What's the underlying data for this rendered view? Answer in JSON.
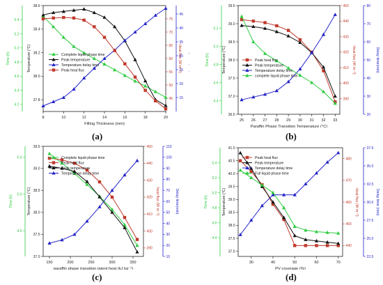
{
  "chart_data": [
    {
      "type": "line",
      "panel_label": "(a)",
      "xlabel": "Filling Thickness (mm)",
      "xlim": [
        8,
        20
      ],
      "xticks": [
        "8",
        "10",
        "12",
        "14",
        "16",
        "18",
        "20"
      ],
      "axes": [
        {
          "id": "time",
          "label": "Time (h)",
          "color": "#2ecc40",
          "ylim": [
            4.1,
            5.6
          ],
          "ticks": [
            "4.2",
            "4.4",
            "4.6",
            "4.8",
            "5.0",
            "5.2",
            "5.4"
          ]
        },
        {
          "id": "temp",
          "label": "Temperature (°C)",
          "color": "#222222",
          "ylim": [
            37.7,
            38.6
          ],
          "ticks": [
            "37.8",
            "38.0",
            "38.2",
            "38.4",
            "38.6"
          ]
        },
        {
          "id": "flux",
          "label": "Heat flux (W m⁻²)",
          "color": "#c0392b",
          "ylim": [
            40,
            80
          ],
          "ticks": [
            "45",
            "50",
            "55",
            "60",
            "65",
            "70",
            "75"
          ]
        },
        {
          "id": "delay",
          "label": "Delay time (min)",
          "color": "#2323c8",
          "ylim": [
            10,
            48
          ],
          "ticks": [
            "15",
            "20",
            "25",
            "30",
            "35",
            "40",
            "45"
          ]
        }
      ],
      "legend": [
        "Complete liquid phase time",
        "Peak temperature",
        "Temperature delay time",
        "Peak heat flux"
      ],
      "series": [
        {
          "name": "Complete liquid phase time",
          "axis": "time",
          "color": "#2ecc40",
          "marker": "triangle",
          "x": [
            8,
            9,
            10,
            11,
            12,
            13,
            14,
            15,
            16,
            17,
            18,
            19,
            20
          ],
          "values": [
            5.45,
            5.3,
            5.15,
            5.02,
            4.93,
            4.85,
            4.77,
            4.69,
            4.61,
            4.53,
            4.46,
            4.38,
            4.3
          ]
        },
        {
          "name": "Peak temperature",
          "axis": "temp",
          "color": "#111111",
          "marker": "triangle",
          "x": [
            8,
            9,
            10,
            11,
            12,
            13,
            14,
            15,
            16,
            17,
            18,
            19,
            20
          ],
          "values": [
            38.52,
            38.54,
            38.55,
            38.56,
            38.57,
            38.54,
            38.5,
            38.42,
            38.3,
            38.14,
            37.96,
            37.8,
            37.75
          ]
        },
        {
          "name": "Temperature delay time",
          "axis": "delay",
          "color": "#2323c8",
          "marker": "triangle",
          "x": [
            8,
            9,
            10,
            11,
            12,
            13,
            14,
            15,
            16,
            17,
            18,
            19,
            20
          ],
          "values": [
            12,
            13.5,
            15,
            18,
            22,
            25.5,
            29,
            32,
            35.5,
            38.5,
            41.5,
            44.5,
            47
          ]
        },
        {
          "name": "Peak heat flux",
          "axis": "flux",
          "color": "#c0392b",
          "marker": "square",
          "x": [
            8,
            9,
            10,
            11,
            12,
            13,
            14,
            15,
            16,
            17,
            18,
            19,
            20
          ],
          "values": [
            75,
            75.3,
            75.5,
            75.3,
            74.5,
            72,
            68,
            63,
            58,
            53,
            48,
            44,
            41
          ]
        }
      ]
    },
    {
      "type": "line",
      "panel_label": "(b)",
      "xlabel": "Paraffin Phase Transition Temperature (°C)",
      "xlim": [
        24.7,
        33.4
      ],
      "xticks": [
        "25",
        "26",
        "27",
        "28",
        "29",
        "30",
        "31",
        "32",
        "33"
      ],
      "axes": [
        {
          "id": "time",
          "label": "Time (h)",
          "color": "#2ecc40",
          "ylim": [
            4.25,
            5.45
          ],
          "ticks": [
            "4.4",
            "4.6",
            "4.8",
            "5.0",
            "5.2"
          ]
        },
        {
          "id": "temp",
          "label": "Temperature (°C)",
          "color": "#222222",
          "ylim": [
            36.5,
            39.5
          ],
          "ticks": [
            "36.5",
            "37.0",
            "37.5",
            "38.0",
            "38.5",
            "39.0",
            "39.5"
          ]
        },
        {
          "id": "flux",
          "label": "Heat flux (W m⁻²)",
          "color": "#c0392b",
          "ylim": [
            380,
            450
          ],
          "ticks": [
            "390",
            "400",
            "410",
            "420",
            "430",
            "440",
            "450"
          ]
        },
        {
          "id": "delay",
          "label": "Delay time(min)",
          "color": "#2323c8",
          "ylim": [
            20,
            80
          ],
          "ticks": [
            "20",
            "30",
            "40",
            "50",
            "60",
            "70",
            "80"
          ]
        }
      ],
      "legend": [
        "Peak heat flux",
        "Peak temperature",
        "Temperature delay time",
        "complete liquid phase time"
      ],
      "series": [
        {
          "name": "Peak heat flux",
          "axis": "flux",
          "color": "#c0392b",
          "marker": "square",
          "x": [
            25,
            26,
            27,
            28,
            29,
            30,
            31,
            32,
            33
          ],
          "values": [
            441,
            440,
            439,
            437,
            434,
            428,
            420,
            408,
            388
          ]
        },
        {
          "name": "Peak temperature",
          "axis": "temp",
          "color": "#111111",
          "marker": "triangle",
          "x": [
            25,
            26,
            27,
            28,
            29,
            30,
            31,
            32,
            33
          ],
          "values": [
            38.95,
            38.92,
            38.87,
            38.78,
            38.66,
            38.48,
            38.2,
            37.8,
            37.0
          ]
        },
        {
          "name": "Temperature delay time",
          "axis": "delay",
          "color": "#2323c8",
          "marker": "triangle",
          "x": [
            25,
            26,
            27,
            28,
            29,
            30,
            31,
            32,
            33
          ],
          "values": [
            28,
            29.5,
            31,
            33,
            38,
            45,
            54,
            64,
            75
          ]
        },
        {
          "name": "complete liquid phase time",
          "axis": "time",
          "color": "#2ecc40",
          "marker": "triangle",
          "x": [
            25,
            26,
            27,
            28,
            29,
            30,
            31,
            32,
            33
          ],
          "values": [
            5.33,
            5.05,
            4.92,
            4.84,
            4.76,
            4.68,
            4.6,
            4.5,
            4.37
          ]
        }
      ]
    },
    {
      "type": "line",
      "panel_label": "(c)",
      "xlabel": "paraffin phase transition latent heat (kJ kg⁻¹)",
      "xlim": [
        135,
        375
      ],
      "xticks": [
        "150",
        "200",
        "250",
        "300",
        "350"
      ],
      "axes": [
        {
          "id": "time",
          "label": "Time (h)",
          "color": "#2ecc40",
          "ylim": [
            4.15,
            5.65
          ],
          "ticks": [
            "4.5",
            "5.0",
            "5.5"
          ]
        },
        {
          "id": "temp",
          "label": "Temperature (°C)",
          "color": "#222222",
          "ylim": [
            37.0,
            39.5
          ],
          "ticks": [
            "37.0",
            "37.5",
            "38.0",
            "38.5",
            "39.0",
            "39.5"
          ]
        },
        {
          "id": "flux",
          "label": "heat flux (W m⁻²)",
          "color": "#c0392b",
          "ylim": [
            385,
            450
          ],
          "ticks": [
            "390",
            "400",
            "410",
            "420",
            "430",
            "440",
            "450"
          ]
        },
        {
          "id": "delay",
          "label": "Delay time(min)",
          "color": "#2323c8",
          "ylim": [
            10,
            110
          ],
          "ticks": [
            "10",
            "20",
            "30",
            "40",
            "50",
            "60",
            "70",
            "80",
            "90",
            "100",
            "110"
          ]
        }
      ],
      "legend": [
        "Complete liquid phase time",
        "Peak heat flux",
        "Peak temperature",
        "Temperature delay time"
      ],
      "series": [
        {
          "name": "Complete liquid phase time",
          "axis": "time",
          "color": "#2ecc40",
          "marker": "triangle",
          "x": [
            150,
            180,
            210,
            240,
            270,
            300,
            330,
            360
          ],
          "values": [
            5.55,
            5.42,
            5.28,
            5.13,
            4.97,
            4.79,
            4.58,
            4.3
          ]
        },
        {
          "name": "Peak heat flux",
          "axis": "flux",
          "color": "#c0392b",
          "marker": "square",
          "x": [
            150,
            180,
            210,
            240,
            270,
            300,
            330,
            360
          ],
          "values": [
            443,
            442,
            440,
            436,
            429,
            420,
            408,
            395
          ]
        },
        {
          "name": "Peak temperature",
          "axis": "temp",
          "color": "#111111",
          "marker": "triangle",
          "x": [
            150,
            180,
            210,
            240,
            270,
            300,
            330,
            360
          ],
          "values": [
            39.05,
            39.0,
            38.93,
            38.7,
            38.35,
            38.0,
            37.65,
            37.1
          ]
        },
        {
          "name": "Temperature delay time",
          "axis": "delay",
          "color": "#2323c8",
          "marker": "triangle",
          "x": [
            150,
            180,
            210,
            240,
            270,
            300,
            330,
            360
          ],
          "values": [
            22,
            25,
            30,
            42,
            55,
            70,
            84,
            97
          ]
        }
      ]
    },
    {
      "type": "line",
      "panel_label": "(d)",
      "xlabel": "PV coverage (%)",
      "xlim": [
        24,
        72
      ],
      "xticks": [
        "30",
        "40",
        "50",
        "60",
        "70"
      ],
      "axes": [
        {
          "id": "time",
          "label": "Time (h)",
          "color": "#2ecc40",
          "ylim": [
            4.15,
            5.6
          ],
          "ticks": [
            "4.4",
            "4.6",
            "4.8",
            "5.0",
            "5.2",
            "5.4"
          ]
        },
        {
          "id": "temp",
          "label": "Temperature (°C)",
          "color": "#222222",
          "ylim": [
            36.8,
            41.0
          ],
          "ticks": [
            "37.0",
            "37.5",
            "38.0",
            "38.5",
            "39.0",
            "39.5",
            "40.0",
            "40.5",
            "41.0"
          ]
        },
        {
          "id": "flux",
          "label": "Heat flux (W m⁻²)",
          "color": "#c0392b",
          "ylim": [
            435,
            485
          ],
          "ticks": [
            "440",
            "450",
            "460",
            "470",
            "480"
          ]
        },
        {
          "id": "delay",
          "label": "Delay time (min)",
          "color": "#2323c8",
          "ylim": [
            22.5,
            37.5
          ],
          "ticks": [
            "22.5",
            "25.0",
            "27.5",
            "30.0",
            "32.5",
            "35.0",
            "37.5"
          ]
        }
      ],
      "legend": [
        "Peak heat flux",
        "Peak temperature",
        "Temperature delay time",
        "Full liquid phase time"
      ],
      "series": [
        {
          "name": "Peak heat flux",
          "axis": "flux",
          "color": "#c0392b",
          "marker": "square",
          "x": [
            25,
            30,
            35,
            40,
            45,
            50,
            55,
            60,
            65,
            70
          ],
          "values": [
            479,
            474,
            468,
            459,
            452,
            440,
            440,
            440,
            440,
            440
          ]
        },
        {
          "name": "Peak temperature",
          "axis": "temp",
          "color": "#111111",
          "marker": "triangle",
          "x": [
            25,
            30,
            35,
            40,
            45,
            50,
            55,
            60,
            65,
            70
          ],
          "values": [
            40.8,
            40.2,
            39.5,
            38.9,
            38.3,
            37.6,
            37.45,
            37.4,
            37.35,
            37.3
          ]
        },
        {
          "name": "Temperature delay time",
          "axis": "delay",
          "color": "#2323c8",
          "marker": "triangle",
          "x": [
            25,
            30,
            35,
            40,
            45,
            50,
            55,
            60,
            65,
            70
          ],
          "values": [
            25.5,
            27.5,
            29.5,
            31,
            31,
            31,
            32.5,
            34,
            35.5,
            36.8
          ]
        },
        {
          "name": "Full liquid phase time",
          "axis": "time",
          "color": "#2ecc40",
          "marker": "triangle",
          "x": [
            25,
            30,
            35,
            40,
            45,
            50,
            55,
            60,
            65,
            70
          ],
          "values": [
            5.3,
            5.2,
            5.1,
            5.0,
            4.8,
            4.55,
            4.5,
            4.48,
            4.47,
            4.46
          ]
        }
      ]
    }
  ]
}
